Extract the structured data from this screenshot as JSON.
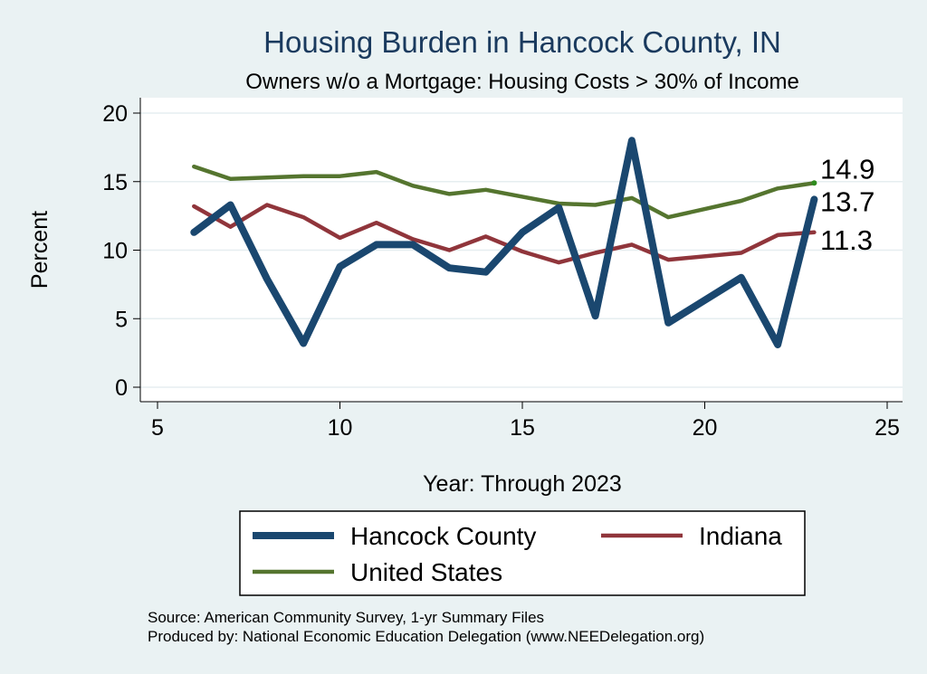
{
  "chart_data": {
    "type": "line",
    "title": "Housing Burden in Hancock County, IN",
    "subtitle": "Owners w/o a Mortgage: Housing Costs > 30% of Income",
    "xlabel": "Year: Through 2023",
    "ylabel": "Percent",
    "xlim": [
      5,
      25
    ],
    "ylim": [
      0,
      20
    ],
    "xticks": [
      5,
      10,
      15,
      20,
      25
    ],
    "yticks": [
      0,
      5,
      10,
      15,
      20
    ],
    "grid": true,
    "legend_position": "bottom",
    "series": [
      {
        "name": "Hancock County",
        "color": "#1a476f",
        "points": [
          [
            6,
            11.3
          ],
          [
            7,
            13.3
          ],
          [
            8,
            7.9
          ],
          [
            9,
            3.2
          ],
          [
            10,
            8.8
          ],
          [
            11,
            10.4
          ],
          [
            12,
            10.4
          ],
          [
            13,
            8.7
          ],
          [
            14,
            8.4
          ],
          [
            15,
            11.3
          ],
          [
            16,
            13.1
          ],
          [
            17,
            5.2
          ],
          [
            18,
            18.0
          ],
          [
            19,
            4.7
          ],
          [
            21,
            8.0
          ],
          [
            22,
            3.1
          ],
          [
            23,
            13.7
          ]
        ],
        "end_label": "13.7"
      },
      {
        "name": "Indiana",
        "color": "#90353b",
        "points": [
          [
            6,
            13.2
          ],
          [
            7,
            11.7
          ],
          [
            8,
            13.3
          ],
          [
            9,
            12.4
          ],
          [
            10,
            10.9
          ],
          [
            11,
            12.0
          ],
          [
            12,
            10.8
          ],
          [
            13,
            10.0
          ],
          [
            14,
            11.0
          ],
          [
            15,
            9.9
          ],
          [
            16,
            9.1
          ],
          [
            17,
            9.8
          ],
          [
            18,
            10.4
          ],
          [
            19,
            9.3
          ],
          [
            21,
            9.8
          ],
          [
            22,
            11.1
          ],
          [
            23,
            11.3
          ]
        ],
        "end_label": "11.3"
      },
      {
        "name": "United States",
        "color": "#55752f",
        "points": [
          [
            6,
            16.1
          ],
          [
            7,
            15.2
          ],
          [
            8,
            15.3
          ],
          [
            9,
            15.4
          ],
          [
            10,
            15.4
          ],
          [
            11,
            15.7
          ],
          [
            12,
            14.7
          ],
          [
            13,
            14.1
          ],
          [
            14,
            14.4
          ],
          [
            15,
            13.9
          ],
          [
            16,
            13.4
          ],
          [
            17,
            13.3
          ],
          [
            18,
            13.8
          ],
          [
            19,
            12.4
          ],
          [
            21,
            13.6
          ],
          [
            22,
            14.5
          ],
          [
            23,
            14.9
          ]
        ],
        "end_label": "14.9",
        "marker_color": "#2e8b1e"
      }
    ]
  },
  "source_lines": [
    "Source: American Community Survey, 1-yr Summary Files",
    "Produced by: National Economic Education Delegation (www.NEEDelegation.org)"
  ]
}
